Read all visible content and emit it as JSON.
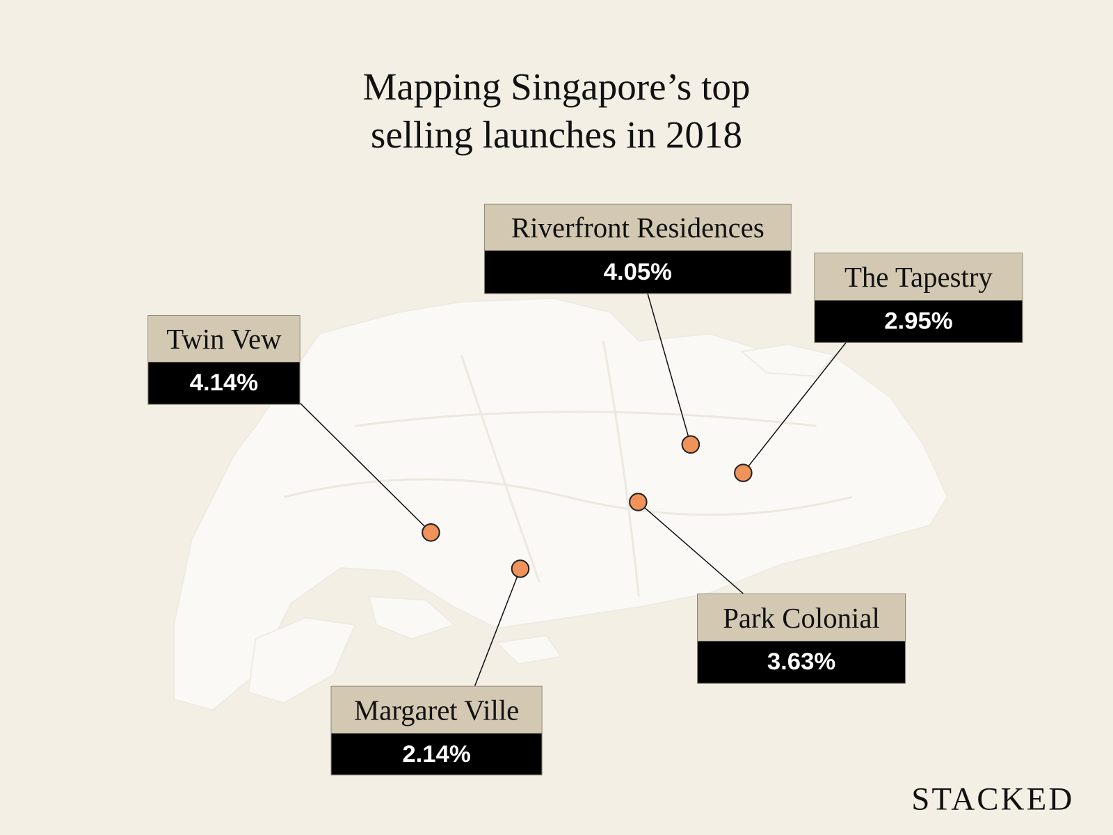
{
  "title": {
    "line1": "Mapping Singapore’s top",
    "line2": "selling launches in 2018"
  },
  "launches": [
    {
      "name": "Riverfront Residences",
      "value": "4.05%"
    },
    {
      "name": "The Tapestry",
      "value": "2.95%"
    },
    {
      "name": "Twin Vew",
      "value": "4.14%"
    },
    {
      "name": "Park Colonial",
      "value": "3.63%"
    },
    {
      "name": "Margaret Ville",
      "value": "2.14%"
    }
  ],
  "brand": "STACKED",
  "colors": {
    "background": "#f3efe5",
    "land": "#faf9f6",
    "label_header": "#d3c9b3",
    "label_value": "#000000",
    "marker": "#f0935a"
  }
}
